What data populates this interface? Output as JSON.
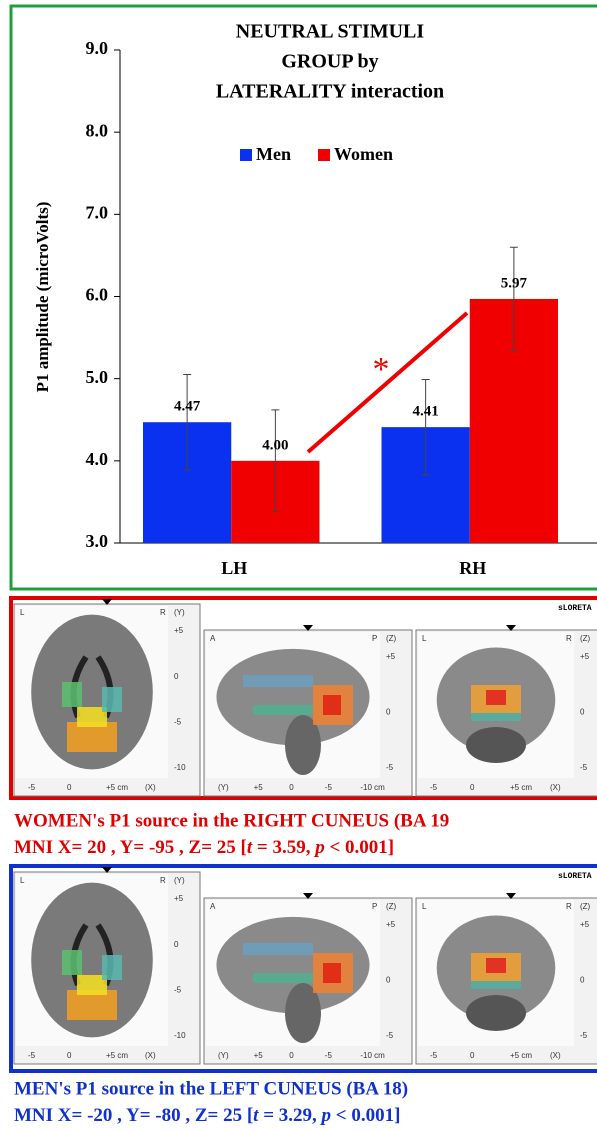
{
  "chart_data": {
    "type": "bar",
    "title": [
      "NEUTRAL STIMULI",
      "GROUP by",
      "LATERALITY interaction"
    ],
    "y_label": "P1 amplitude  (microVolts)",
    "categories": [
      "LH",
      "RH"
    ],
    "series": [
      {
        "name": "Men",
        "color": "#0b31f0",
        "values": [
          4.47,
          4.41
        ],
        "value_labels": [
          "4.47",
          "4.41"
        ],
        "errors": [
          0.58,
          0.58
        ]
      },
      {
        "name": "Women",
        "color": "#f00000",
        "values": [
          4.0,
          5.97
        ],
        "value_labels": [
          "4.00",
          "5.97"
        ],
        "errors": [
          0.62,
          0.63
        ]
      }
    ],
    "ylim": [
      3.0,
      9.0
    ],
    "yticks": [
      {
        "value": 3,
        "label": "3.0"
      },
      {
        "value": 4,
        "label": "4.0"
      },
      {
        "value": 5,
        "label": "5.0"
      },
      {
        "value": 6,
        "label": "6.0"
      },
      {
        "value": 7,
        "label": "7.0"
      },
      {
        "value": 8,
        "label": "8.0"
      },
      {
        "value": 9,
        "label": "9.0"
      }
    ],
    "grid": false,
    "annotation": "*"
  },
  "panels": [
    {
      "software": "sLORETA",
      "views": [
        {
          "left": "L",
          "right": "R",
          "axis": "(Y)",
          "ticks": [
            "+5",
            "0",
            "-5",
            "-10"
          ],
          "bottom": [
            "-5",
            "0",
            "+5 cm",
            "(X)"
          ]
        },
        {
          "left": "A",
          "right": "P",
          "axis": "(Z)",
          "ticks": [
            "+5",
            "0",
            "-5"
          ],
          "bottom": [
            "(Y)",
            "+5",
            "0",
            "-5",
            "-10 cm"
          ]
        },
        {
          "left": "L",
          "right": "R",
          "axis": "(Z)",
          "ticks": [
            "+5",
            "0",
            "-5"
          ],
          "bottom": [
            "-5",
            "0",
            "+5 cm",
            "(X)"
          ]
        }
      ],
      "caption": [
        "WOMEN's P1 source in the RIGHT CUNEUS (BA 19",
        [
          "MNI  X= 20 , Y= -95 , Z= 25 [",
          "t",
          " = 3.59, ",
          "p",
          " < 0.001]"
        ]
      ]
    },
    {
      "software": "sLORETA",
      "views": [
        {
          "left": "L",
          "right": "R",
          "axis": "(Y)",
          "ticks": [
            "+5",
            "0",
            "-5",
            "-10"
          ],
          "bottom": [
            "-5",
            "0",
            "+5 cm",
            "(X)"
          ]
        },
        {
          "left": "A",
          "right": "P",
          "axis": "(Z)",
          "ticks": [
            "+5",
            "0",
            "-5"
          ],
          "bottom": [
            "(Y)",
            "+5",
            "0",
            "-5",
            "-10 cm"
          ]
        },
        {
          "left": "L",
          "right": "R",
          "axis": "(Z)",
          "ticks": [
            "+5",
            "0",
            "-5"
          ],
          "bottom": [
            "-5",
            "0",
            "+5 cm",
            "(X)"
          ]
        }
      ],
      "caption": [
        "MEN's P1 source in the LEFT CUNEUS (BA 18)",
        [
          "MNI  X= -20 , Y= -80 , Z= 25 [",
          "t",
          " = 3.29, ",
          "p",
          " < 0.001]"
        ]
      ]
    }
  ]
}
